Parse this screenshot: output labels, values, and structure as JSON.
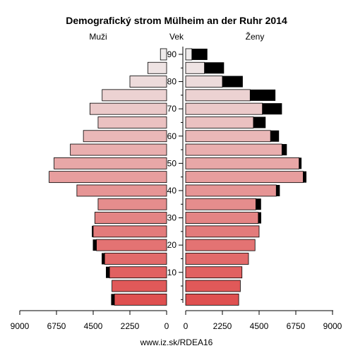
{
  "chart_data": {
    "type": "bar",
    "title": "Demografický strom Mülheim an der Ruhr 2014",
    "left_label": "Muži",
    "center_label": "Vek",
    "right_label": "Ženy",
    "footer": "www.iz.sk/RDEA16",
    "x_ticks_left": [
      "9000",
      "6750",
      "4500",
      "2250",
      "0"
    ],
    "x_ticks_right": [
      "0",
      "2250",
      "4500",
      "6750",
      "9000"
    ],
    "xlim": [
      0,
      9000
    ],
    "age_ticks": [
      "10",
      "20",
      "30",
      "40",
      "50",
      "60",
      "70",
      "80",
      "90"
    ],
    "age_groups": [
      "0-4",
      "5-9",
      "10-14",
      "15-19",
      "20-24",
      "25-29",
      "30-34",
      "35-39",
      "40-44",
      "45-49",
      "50-54",
      "55-59",
      "60-64",
      "65-69",
      "70-74",
      "75-79",
      "80-84",
      "85-89",
      "90+"
    ],
    "series": [
      {
        "name": "Muži",
        "values": [
          3200,
          3350,
          3500,
          3800,
          4300,
          4500,
          4400,
          4200,
          5500,
          7200,
          6900,
          5900,
          5100,
          4200,
          4700,
          3950,
          2250,
          1150,
          380
        ]
      },
      {
        "name": "Muži (excess)",
        "values": [
          200,
          0,
          220,
          180,
          220,
          80,
          0,
          0,
          0,
          0,
          0,
          0,
          0,
          0,
          0,
          0,
          0,
          0,
          0
        ]
      },
      {
        "name": "Ženy",
        "values": [
          3250,
          3350,
          3450,
          3850,
          4250,
          4500,
          4450,
          4300,
          5550,
          7200,
          6950,
          5900,
          5200,
          4150,
          4700,
          3950,
          2250,
          1150,
          380
        ]
      },
      {
        "name": "Ženy (excess)",
        "values": [
          0,
          0,
          0,
          0,
          0,
          0,
          180,
          320,
          220,
          200,
          150,
          300,
          520,
          750,
          1200,
          1550,
          1250,
          1200,
          950
        ]
      }
    ]
  }
}
